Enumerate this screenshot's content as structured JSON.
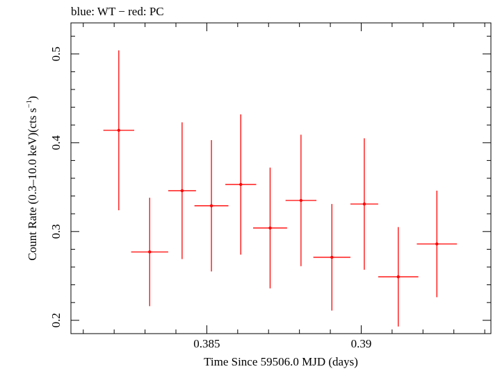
{
  "chart_data": {
    "type": "scatter",
    "title": "blue: WT − red: PC",
    "xlabel": "Time Since 59506.0 MJD (days)",
    "ylabel_main": "Count Rate (0.3–10.0 keV)(cts s",
    "ylabel_sup": "−1",
    "ylabel_end": ")",
    "xlim": [
      0.3806,
      0.3942
    ],
    "ylim": [
      0.185,
      0.535
    ],
    "x_ticks": [
      0.385,
      0.39
    ],
    "x_tick_labels": [
      "0.385",
      "0.39"
    ],
    "y_ticks": [
      0.2,
      0.3,
      0.4,
      0.5
    ],
    "y_tick_labels": [
      "0.2",
      "0.3",
      "0.4",
      "0.5"
    ],
    "grid": false,
    "series": [
      {
        "color": "#ff0000",
        "points": [
          {
            "x": 0.38215,
            "xerr": 0.0005,
            "y": 0.414,
            "yerr_lo": 0.09,
            "yerr_hi": 0.09
          },
          {
            "x": 0.38315,
            "xerr": 0.0006,
            "y": 0.277,
            "yerr_lo": 0.061,
            "yerr_hi": 0.061
          },
          {
            "x": 0.3842,
            "xerr": 0.00045,
            "y": 0.346,
            "yerr_lo": 0.077,
            "yerr_hi": 0.077
          },
          {
            "x": 0.38515,
            "xerr": 0.00055,
            "y": 0.329,
            "yerr_lo": 0.074,
            "yerr_hi": 0.074
          },
          {
            "x": 0.3861,
            "xerr": 0.0005,
            "y": 0.353,
            "yerr_lo": 0.079,
            "yerr_hi": 0.079
          },
          {
            "x": 0.38705,
            "xerr": 0.00055,
            "y": 0.304,
            "yerr_lo": 0.068,
            "yerr_hi": 0.068
          },
          {
            "x": 0.38805,
            "xerr": 0.0005,
            "y": 0.335,
            "yerr_lo": 0.074,
            "yerr_hi": 0.074
          },
          {
            "x": 0.38905,
            "xerr": 0.0006,
            "y": 0.271,
            "yerr_lo": 0.06,
            "yerr_hi": 0.06
          },
          {
            "x": 0.3901,
            "xerr": 0.00045,
            "y": 0.331,
            "yerr_lo": 0.074,
            "yerr_hi": 0.074
          },
          {
            "x": 0.3912,
            "xerr": 0.00065,
            "y": 0.249,
            "yerr_lo": 0.056,
            "yerr_hi": 0.056
          },
          {
            "x": 0.39245,
            "xerr": 0.00065,
            "y": 0.286,
            "yerr_lo": 0.06,
            "yerr_hi": 0.06
          }
        ]
      }
    ]
  }
}
